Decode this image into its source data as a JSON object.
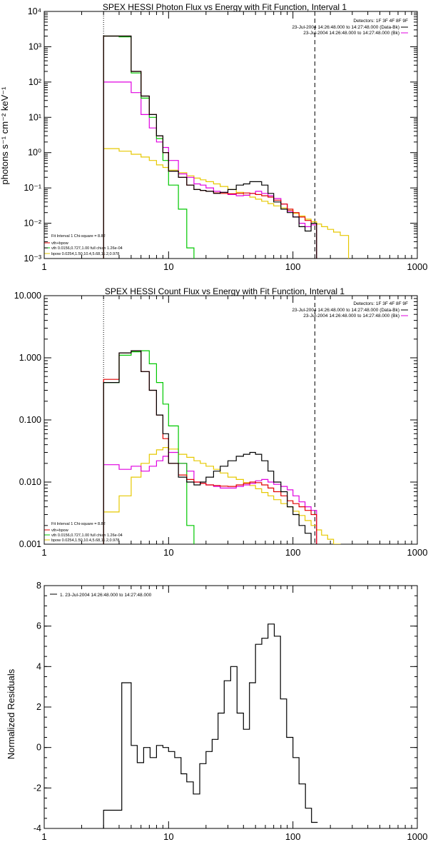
{
  "colors": {
    "data": "#000000",
    "total_fit": "#e00000",
    "vth": "#00c800",
    "bpow": "#e6c800",
    "background": "#e000e0"
  },
  "chart_data": [
    {
      "type": "line",
      "title": "SPEX HESSI Photon Flux vs Energy with Fit Function, Interval 1",
      "xlabel": "",
      "ylabel": "photons s⁻¹ cm⁻² keV⁻¹",
      "xscale": "log",
      "yscale": "log",
      "xlim": [
        1,
        1000
      ],
      "ylim": [
        0.001,
        10000
      ],
      "x_ticks": [
        1,
        10,
        100,
        1000
      ],
      "x_tick_labels": [
        "1",
        "10",
        "100",
        "1000"
      ],
      "y_ticks": [
        0.001,
        0.01,
        0.1,
        1,
        10,
        100,
        1000,
        10000
      ],
      "y_tick_labels": [
        "10⁻³",
        "10⁻²",
        "10⁻¹",
        "10⁰",
        "10¹",
        "10²",
        "10³",
        "10⁴"
      ],
      "vlines": [
        {
          "x": 3,
          "style": "dotted"
        },
        {
          "x": 150,
          "style": "dashed"
        }
      ],
      "legend_top_right": [
        "Detectors: 1F 3F 4F 8F 9F",
        "23-Jul-2004 14:26:48.000 to 14:27:48.000 (Data-Bk)",
        "23-Jul-2004 14:26:48.000 to 14:27:48.000 (Bk)"
      ],
      "legend_bottom_left": [
        "Fit Interval 1   Chi-square = 8.82",
        "vth+bpow",
        "vth 0.0156,0.727,1.00  full chian 1.26e-04",
        "bpow 0.0254,1.50,10.4,5.68,11.2,0.978"
      ],
      "bin_edges": [
        3,
        4,
        5,
        6,
        7,
        8,
        9,
        10,
        12,
        14,
        16,
        18,
        20,
        23,
        26,
        30,
        35,
        40,
        45,
        50,
        56,
        63,
        70,
        80,
        90,
        100,
        112,
        125,
        140,
        155,
        170,
        190,
        212,
        240,
        280
      ],
      "series": [
        {
          "key": "data",
          "values": [
            2000,
            2000,
            200,
            40,
            12,
            3,
            1,
            0.3,
            0.2,
            0.12,
            0.09,
            0.085,
            0.08,
            0.07,
            0.075,
            0.09,
            0.12,
            0.13,
            0.15,
            0.15,
            0.12,
            0.07,
            0.04,
            0.025,
            0.02,
            0.015,
            0.008,
            0.006,
            0.01
          ]
        },
        {
          "key": "total_fit",
          "values": [
            2000,
            2000,
            200,
            40,
            12,
            3,
            1,
            0.3,
            0.2,
            0.12,
            0.09,
            0.085,
            0.08,
            0.072,
            0.07,
            0.068,
            0.07,
            0.072,
            0.07,
            0.065,
            0.06,
            0.055,
            0.045,
            0.035,
            0.025,
            0.02,
            0.015,
            0.012,
            0.01
          ]
        },
        {
          "key": "vth",
          "values": [
            2000,
            1900,
            180,
            35,
            10,
            2.5,
            0.6,
            0.12,
            0.025,
            0.002
          ]
        },
        {
          "key": "bpow",
          "values": [
            1.3,
            1.1,
            0.9,
            0.75,
            0.6,
            0.45,
            0.38,
            0.32,
            0.27,
            0.22,
            0.19,
            0.17,
            0.15,
            0.13,
            0.11,
            0.09,
            0.075,
            0.063,
            0.055,
            0.048,
            0.042,
            0.036,
            0.031,
            0.027,
            0.023,
            0.019,
            0.016,
            0.013,
            0.011,
            0.0095,
            0.008,
            0.0067,
            0.0056,
            0.0045
          ]
        },
        {
          "key": "background",
          "values": [
            100,
            100,
            50,
            12,
            5,
            2,
            1.4,
            0.6,
            0.25,
            0.2,
            0.13,
            0.12,
            0.1,
            0.08,
            0.075,
            0.065,
            0.06,
            0.062,
            0.07,
            0.08,
            0.07,
            0.06,
            0.05,
            0.035,
            0.022,
            0.015,
            0.01,
            0.008,
            0.009
          ]
        }
      ]
    },
    {
      "type": "line",
      "title": "SPEX HESSI Count Flux vs Energy with Fit Function, Interval 1",
      "xlabel": "",
      "ylabel": "",
      "xscale": "log",
      "yscale": "log",
      "xlim": [
        1,
        1000
      ],
      "ylim": [
        0.001,
        10
      ],
      "x_ticks": [
        1,
        10,
        100,
        1000
      ],
      "x_tick_labels": [
        "1",
        "10",
        "100",
        "1000"
      ],
      "y_ticks": [
        0.001,
        0.01,
        0.1,
        1,
        10
      ],
      "y_tick_labels": [
        "0.001",
        "0.010",
        "0.100",
        "1.000",
        "10.000"
      ],
      "vlines": [
        {
          "x": 3,
          "style": "dotted"
        },
        {
          "x": 150,
          "style": "dashed"
        }
      ],
      "legend_top_right": [
        "Detectors: 1F 3F 4F 8F 9F",
        "23-Jul-2004 14:26:48.000 to 14:27:48.000 (Data-Bk)",
        "23-Jul-2004 14:26:48.000 to 14:27:48.000 (Bk)"
      ],
      "legend_bottom_left": [
        "Fit Interval 1   Chi-square = 8.82",
        "vth+bpow",
        "vth 0.0156,0.727,1.00  full chian 1.26e-04",
        "bpow 0.0254,1.50,10.4,5.68,11.2,0.978"
      ],
      "bin_edges": [
        3,
        4,
        5,
        6,
        7,
        8,
        9,
        10,
        12,
        14,
        16,
        18,
        20,
        23,
        26,
        30,
        35,
        40,
        45,
        50,
        56,
        63,
        70,
        80,
        90,
        100,
        112,
        125,
        140,
        155,
        170,
        190,
        212,
        240,
        280
      ],
      "series": [
        {
          "key": "data",
          "values": [
            0.4,
            1.2,
            1.3,
            0.6,
            0.3,
            0.12,
            0.06,
            0.02,
            0.012,
            0.01,
            0.009,
            0.01,
            0.012,
            0.015,
            0.018,
            0.022,
            0.026,
            0.028,
            0.03,
            0.028,
            0.022,
            0.015,
            0.01,
            0.007,
            0.004,
            0.003,
            0.002,
            0.0015,
            0.001
          ]
        },
        {
          "key": "total_fit",
          "values": [
            0.45,
            1.2,
            1.3,
            0.6,
            0.3,
            0.12,
            0.05,
            0.02,
            0.013,
            0.011,
            0.01,
            0.0095,
            0.009,
            0.0088,
            0.0086,
            0.0085,
            0.009,
            0.0095,
            0.01,
            0.0098,
            0.009,
            0.008,
            0.007,
            0.006,
            0.005,
            0.0045,
            0.004,
            0.0035,
            0.003
          ]
        },
        {
          "key": "vth",
          "values": [
            0.4,
            1.1,
            1.25,
            1.3,
            0.8,
            0.4,
            0.18,
            0.08,
            0.02,
            0.002
          ]
        },
        {
          "key": "bpow",
          "values": [
            0.0033,
            0.006,
            0.012,
            0.02,
            0.028,
            0.033,
            0.036,
            0.034,
            0.028,
            0.025,
            0.022,
            0.02,
            0.018,
            0.016,
            0.014,
            0.012,
            0.011,
            0.0098,
            0.0088,
            0.0078,
            0.0068,
            0.006,
            0.0052,
            0.0045,
            0.004,
            0.0034,
            0.0029,
            0.0024,
            0.002,
            0.0017,
            0.0014,
            0.0012,
            0.001,
            0.0008
          ]
        },
        {
          "key": "background",
          "values": [
            0.019,
            0.016,
            0.018,
            0.015,
            0.018,
            0.022,
            0.026,
            0.03,
            0.02,
            0.015,
            0.01,
            0.0095,
            0.009,
            0.0085,
            0.008,
            0.008,
            0.0085,
            0.009,
            0.0095,
            0.0105,
            0.011,
            0.01,
            0.0092,
            0.0085,
            0.0075,
            0.006,
            0.0048,
            0.004,
            0.0035
          ]
        }
      ]
    },
    {
      "type": "line",
      "title": "",
      "xlabel": "",
      "ylabel": "Normalized Residuals",
      "xscale": "log",
      "yscale": "linear",
      "xlim": [
        1,
        1000
      ],
      "ylim": [
        -4,
        8
      ],
      "x_ticks": [
        1,
        10,
        100,
        1000
      ],
      "x_tick_labels": [
        "1",
        "10",
        "100",
        "1000"
      ],
      "y_ticks": [
        -4,
        -2,
        0,
        2,
        4,
        6,
        8
      ],
      "y_tick_labels": [
        "-4",
        "-2",
        "0",
        "2",
        "4",
        "6",
        "8"
      ],
      "legend_top_left": [
        "1. 23-Jul-2004 14:26:48.000 to 14:27:48.000"
      ],
      "bin_edges": [
        3,
        4.2,
        5,
        5.6,
        6.3,
        7.1,
        8,
        9,
        10,
        11.2,
        12.6,
        14,
        15.8,
        17.8,
        20,
        22.4,
        25,
        28,
        31.6,
        35.5,
        40,
        44.7,
        50,
        56.2,
        63,
        70.8,
        79.4,
        89,
        100,
        112,
        126,
        141,
        158
      ],
      "series": [
        {
          "key": "data",
          "values": [
            -3.1,
            3.2,
            0.1,
            -0.75,
            0.0,
            -0.5,
            0.1,
            0.0,
            -0.2,
            -0.5,
            -1.3,
            -1.7,
            -2.3,
            -0.8,
            -0.2,
            0.4,
            1.7,
            3.3,
            4.0,
            1.7,
            0.9,
            3.2,
            5.1,
            5.4,
            6.1,
            5.5,
            2.4,
            0.5,
            -0.5,
            -1.8,
            -3.0,
            -3.7
          ]
        }
      ]
    }
  ]
}
